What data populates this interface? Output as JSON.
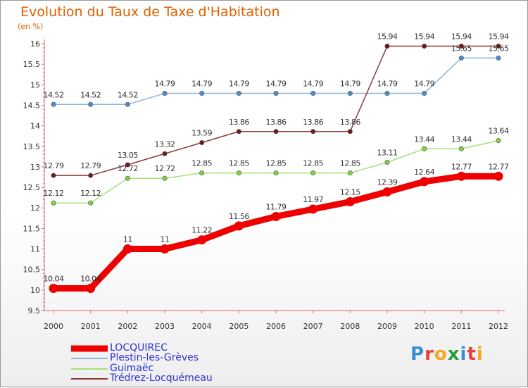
{
  "header": {
    "title": "Evolution du Taux de Taxe d'Habitation",
    "subtitle": "(en %)"
  },
  "logo": {
    "letters": [
      "P",
      "r",
      "o",
      "x",
      "i",
      "t",
      "i"
    ]
  },
  "colors": {
    "title": "#e06000",
    "legend_text": "#2e32d0",
    "axis": "#d46a6a",
    "logo": [
      "#3b8ed6",
      "#e8413c",
      "#f5a623",
      "#2a9d3a",
      "#3b8ed6",
      "#e8413c",
      "#f5a623"
    ]
  },
  "chart_data": {
    "type": "line",
    "title": "Evolution du Taux de Taxe d'Habitation",
    "ylabel": "(en %)",
    "xlabel": "",
    "x": [
      "2000",
      "2001",
      "2002",
      "2003",
      "2004",
      "2005",
      "2006",
      "2007",
      "2008",
      "2009",
      "2010",
      "2011",
      "2012"
    ],
    "ylim": [
      9.5,
      16
    ],
    "yticks": [
      "9.5",
      "10",
      "10.5",
      "11",
      "11.5",
      "12",
      "12.5",
      "13",
      "13.5",
      "14",
      "14.5",
      "15",
      "15.5",
      "16"
    ],
    "grid": false,
    "legend_position": "bottom-left",
    "series": [
      {
        "name": "LOCQUIREC",
        "color": "#ee0000",
        "marker_color": "#ee0000",
        "emphasis": true,
        "values": [
          10.04,
          10.04,
          11,
          11,
          11.22,
          11.56,
          11.79,
          11.97,
          12.15,
          12.39,
          12.64,
          12.77,
          12.77
        ],
        "labels": [
          "10.04",
          "10.04",
          "11",
          "11",
          "11.22",
          "11.56",
          "11.79",
          "11.97",
          "12.15",
          "12.39",
          "12.64",
          "12.77",
          "12.77"
        ]
      },
      {
        "name": "Plestin-les-Grèves",
        "color": "#8eb4d8",
        "marker_color": "#4a8ed0",
        "emphasis": false,
        "values": [
          14.52,
          14.52,
          14.52,
          14.79,
          14.79,
          14.79,
          14.79,
          14.79,
          14.79,
          14.79,
          14.79,
          15.65,
          15.65
        ],
        "labels": [
          "14.52",
          "14.52",
          "14.52",
          "14.79",
          "14.79",
          "14.79",
          "14.79",
          "14.79",
          "14.79",
          "14.79",
          "14.79",
          "15.65",
          "15.65"
        ]
      },
      {
        "name": "Guimaëc",
        "color": "#a6e07a",
        "marker_color": "#7ed23c",
        "emphasis": false,
        "values": [
          12.12,
          12.12,
          12.72,
          12.72,
          12.85,
          12.85,
          12.85,
          12.85,
          12.85,
          13.11,
          13.44,
          13.44,
          13.64
        ],
        "labels": [
          "12.12",
          "12.12",
          "12.72",
          "12.72",
          "12.85",
          "12.85",
          "12.85",
          "12.85",
          "12.85",
          "13.11",
          "13.44",
          "13.44",
          "13.64"
        ]
      },
      {
        "name": "Trédrez-Locquémeau",
        "color": "#8a3a3a",
        "marker_color": "#6e1a1a",
        "emphasis": false,
        "values": [
          12.79,
          12.79,
          13.05,
          13.32,
          13.59,
          13.86,
          13.86,
          13.86,
          13.86,
          15.94,
          15.94,
          15.94,
          15.94
        ],
        "labels": [
          "12.79",
          "12.79",
          "13.05",
          "13.32",
          "13.59",
          "13.86",
          "13.86",
          "13.86",
          "13.86",
          "15.94",
          "15.94",
          "15.94",
          "15.94"
        ]
      }
    ]
  }
}
